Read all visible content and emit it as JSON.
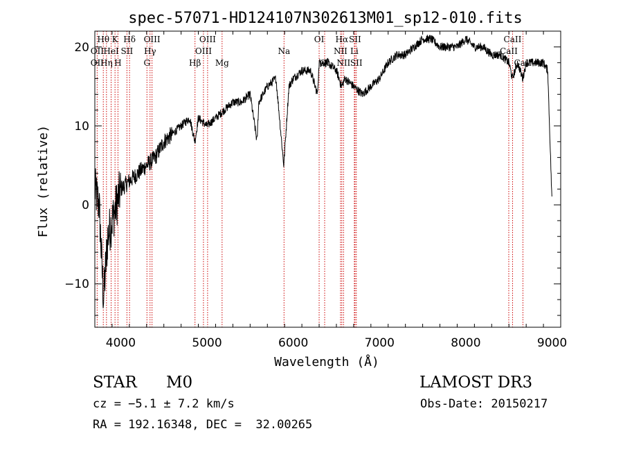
{
  "chart_data": {
    "type": "line",
    "title": "spec-57071-HD124107N302613M01_sp12-010.fits",
    "xlabel": "Wavelength (Å)",
    "ylabel": "Flux (relative)",
    "xlim": [
      3700,
      9100
    ],
    "ylim": [
      -15.5,
      22
    ],
    "xticks": [
      4000,
      5000,
      6000,
      7000,
      8000,
      9000
    ],
    "xtick_labels": [
      "4000",
      "5000",
      "6000",
      "7000",
      "8000",
      "9000"
    ],
    "yticks": [
      -10,
      0,
      10,
      20
    ],
    "ytick_labels": [
      "−10",
      "0",
      "10",
      "20"
    ],
    "grid": false,
    "legend": "none",
    "series": [
      {
        "name": "flux",
        "x": [
          3700,
          3750,
          3800,
          3850,
          3900,
          3950,
          4000,
          4100,
          4200,
          4300,
          4400,
          4500,
          4600,
          4700,
          4800,
          4860,
          4900,
          5000,
          5100,
          5200,
          5300,
          5400,
          5500,
          5580,
          5600,
          5700,
          5800,
          5890,
          5950,
          6000,
          6100,
          6200,
          6280,
          6300,
          6400,
          6500,
          6560,
          6600,
          6700,
          6800,
          6900,
          7000,
          7100,
          7200,
          7300,
          7400,
          7500,
          7600,
          7700,
          7800,
          7900,
          8000,
          8100,
          8200,
          8300,
          8400,
          8500,
          8540,
          8600,
          8660,
          8700,
          8800,
          8900,
          8950,
          9000
        ],
        "y": [
          2,
          0,
          -12,
          -4,
          -2,
          0,
          2,
          3,
          4,
          5,
          6,
          8,
          9,
          10,
          11,
          8,
          11,
          10,
          11,
          12,
          13,
          13,
          14,
          8,
          13,
          15,
          16,
          5,
          15,
          16,
          17,
          17,
          14,
          18,
          18,
          17,
          15,
          16,
          15,
          14,
          15,
          16,
          18,
          19,
          19,
          20,
          21,
          21,
          20,
          20,
          20,
          21,
          20,
          20,
          19,
          19,
          18,
          16,
          18,
          16,
          18,
          18,
          18,
          17,
          0
        ]
      }
    ],
    "line_markers": [
      {
        "label": "Hθ",
        "x": 3798,
        "row": 1
      },
      {
        "label": "OII",
        "x": 3727,
        "row": 2
      },
      {
        "label": "OII",
        "x": 3727,
        "row": 3
      },
      {
        "label": "Hη",
        "x": 3835,
        "row": 3
      },
      {
        "label": "HeI",
        "x": 3889,
        "row": 2
      },
      {
        "label": "K",
        "x": 3934,
        "row": 1
      },
      {
        "label": "H",
        "x": 3968,
        "row": 3
      },
      {
        "label": "SII",
        "x": 4072,
        "row": 2
      },
      {
        "label": "Hδ",
        "x": 4102,
        "row": 1
      },
      {
        "label": "OIII",
        "x": 4363,
        "row": 1
      },
      {
        "label": "Hγ",
        "x": 4340,
        "row": 2
      },
      {
        "label": "G",
        "x": 4304,
        "row": 3
      },
      {
        "label": "Hβ",
        "x": 4861,
        "row": 3
      },
      {
        "label": "OIII",
        "x": 5007,
        "row": 1
      },
      {
        "label": "OIII",
        "x": 4959,
        "row": 2
      },
      {
        "label": "Mg",
        "x": 5175,
        "row": 3
      },
      {
        "label": "Na",
        "x": 5893,
        "row": 2
      },
      {
        "label": "OI",
        "x": 6300,
        "row": 1
      },
      {
        "label": "OI",
        "x": 6364,
        "row": 3
      },
      {
        "label": "Hα",
        "x": 6563,
        "row": 1
      },
      {
        "label": "SII",
        "x": 6716,
        "row": 1
      },
      {
        "label": "NII",
        "x": 6548,
        "row": 2
      },
      {
        "label": "Li",
        "x": 6708,
        "row": 2
      },
      {
        "label": "NII",
        "x": 6583,
        "row": 3
      },
      {
        "label": "SII",
        "x": 6731,
        "row": 3
      },
      {
        "label": "CaII",
        "x": 8542,
        "row": 1
      },
      {
        "label": "CaII",
        "x": 8498,
        "row": 2
      },
      {
        "label": "CaII",
        "x": 8662,
        "row": 3
      }
    ]
  },
  "info": {
    "object_type": "STAR",
    "subclass": "M0",
    "redshift": "cz = −5.1 ± 7.2 km/s",
    "coords": "RA = 192.16348, DEC =  32.00265",
    "survey": "LAMOST DR3",
    "obs_date": "Obs-Date: 20150217"
  },
  "colors": {
    "line": "#000000",
    "marker": "#cc0000"
  }
}
